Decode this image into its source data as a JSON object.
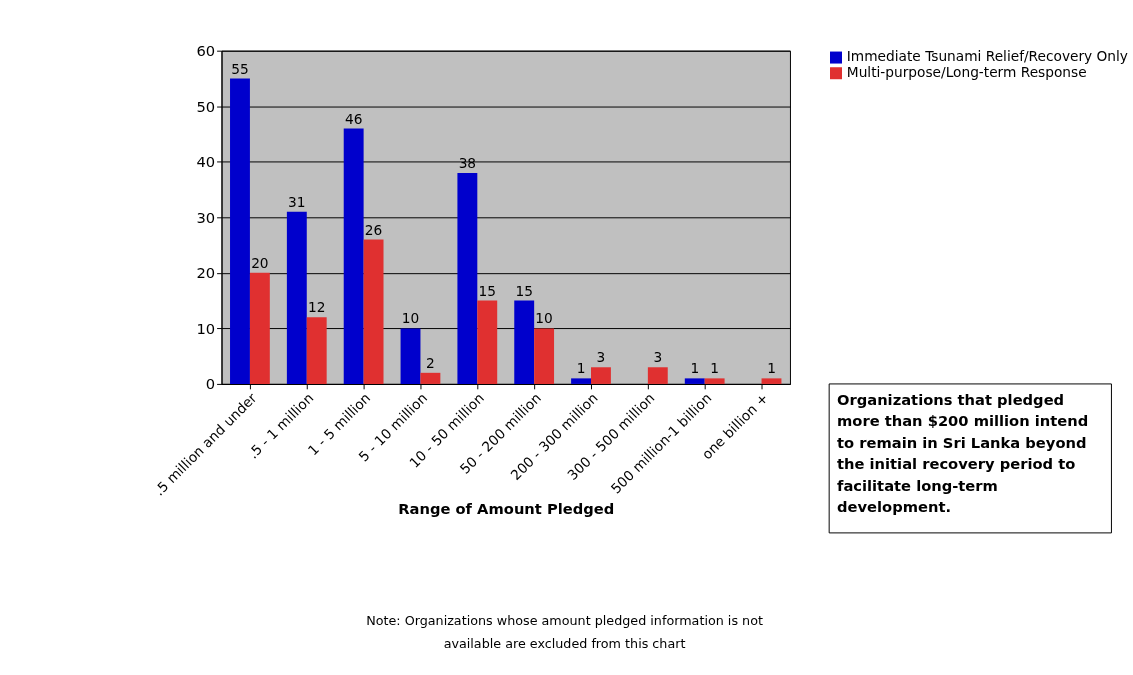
{
  "chart_data": {
    "type": "bar",
    "xlabel": "Range of Amount Pledged",
    "categories": [
      ".5 million and under",
      ".5 - 1 million",
      "1 - 5 million",
      "5 - 10 million",
      "10 - 50 million",
      "50 - 200 million",
      "200 - 300 million",
      "300 - 500 million",
      "500 million-1 billion",
      "one billion +"
    ],
    "series": [
      {
        "name": "Immediate Tsunami Relief/Recovery Only",
        "color": "#0000cc",
        "values": [
          55,
          31,
          46,
          10,
          38,
          15,
          1,
          null,
          1,
          null
        ]
      },
      {
        "name": "Multi-purpose/Long-term Response",
        "color": "#e03030",
        "values": [
          20,
          12,
          26,
          2,
          15,
          10,
          3,
          3,
          1,
          1
        ]
      }
    ],
    "ylim": [
      0,
      60
    ],
    "yticks": [
      0,
      10,
      20,
      30,
      40,
      50,
      60
    ],
    "grid": "y",
    "legend": "top right",
    "data_labels": true,
    "annotations": [
      "Note:  Organizations whose amount pledged information is not available are excluded from this chart",
      "Organizations that pledged more than $200 million intend to remain in Sri Lanka beyond the initial recovery period to facilitate long-term development."
    ]
  }
}
